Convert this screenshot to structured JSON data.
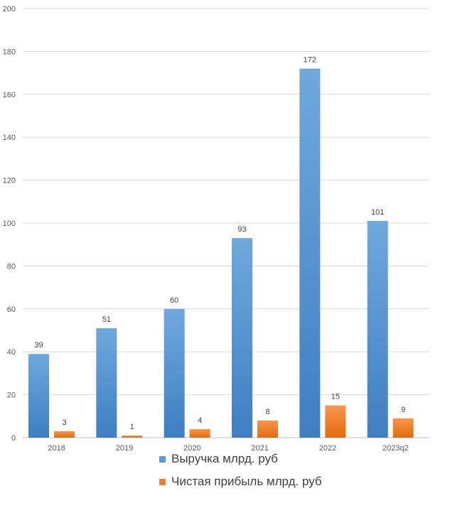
{
  "chart_data": {
    "type": "bar",
    "categories": [
      "2018",
      "2019",
      "2020",
      "2021",
      "2022",
      "2023q2"
    ],
    "series": [
      {
        "name": "Выручка млрд. руб",
        "values": [
          39,
          51,
          60,
          93,
          172,
          101
        ],
        "color": "#5b9bd5"
      },
      {
        "name": "Чистая прибыль млрд. руб",
        "values": [
          3,
          1,
          4,
          8,
          15,
          9
        ],
        "color": "#ed7d31"
      }
    ],
    "ylim": [
      0,
      200
    ],
    "yticks": [
      0,
      20,
      40,
      60,
      80,
      100,
      120,
      140,
      160,
      180,
      200
    ],
    "grid": true,
    "legend_position": "bottom"
  }
}
